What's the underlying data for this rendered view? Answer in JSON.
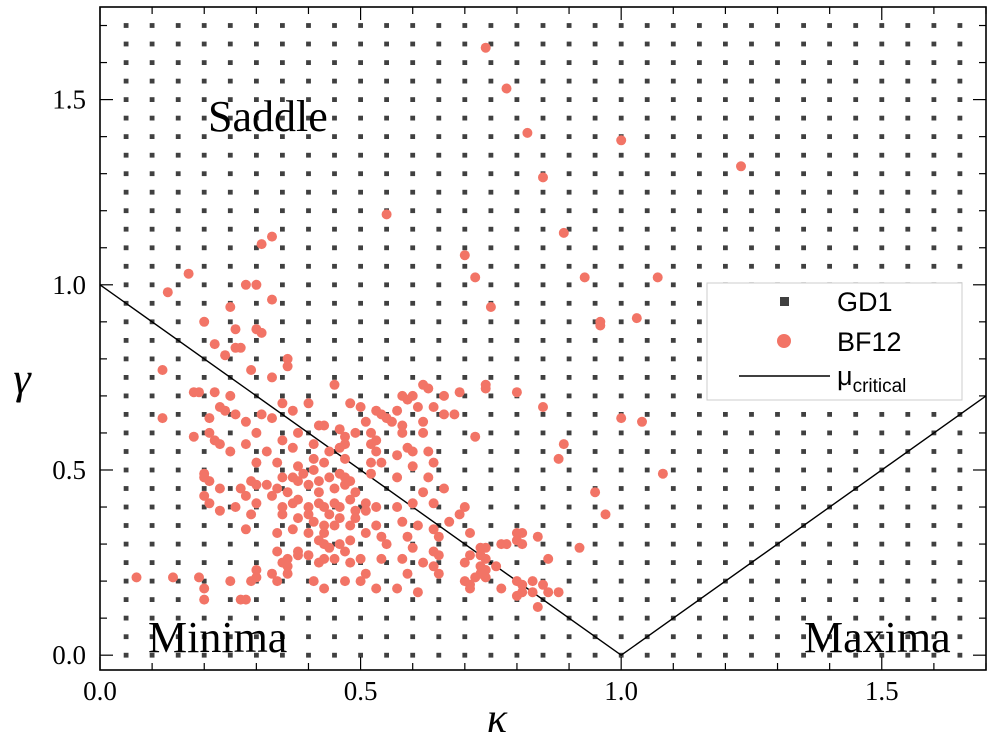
{
  "chart_data": {
    "type": "scatter",
    "xlabel": "κ",
    "ylabel": "γ",
    "xlim": [
      0.0,
      1.7
    ],
    "ylim": [
      -0.04,
      1.75
    ],
    "x_ticks": [
      "0.0",
      "0.5",
      "1.0",
      "1.5"
    ],
    "y_ticks": [
      "0.0",
      "0.5",
      "1.0",
      "1.5"
    ],
    "annotations": {
      "saddle": "Saddle",
      "minima": "Minima",
      "maxima": "Maxima"
    },
    "legend": {
      "position": "right",
      "gd1": "GD1",
      "bf12": "BF12",
      "mu_main": "μ",
      "mu_sub": "critical"
    },
    "colors": {
      "gd1": "#404040",
      "bf12": "#f27466",
      "line": "#000000",
      "axes": "#000000"
    },
    "series": [
      {
        "name": "GD1",
        "marker": "square",
        "grid": {
          "x_start": 0.05,
          "x_end": 1.65,
          "x_step": 0.05,
          "y_start": 0.0,
          "y_end": 1.7,
          "y_step": 0.05
        }
      },
      {
        "name": "BF12",
        "marker": "circle",
        "points": [
          [
            0.74,
            1.64
          ],
          [
            0.78,
            1.53
          ],
          [
            0.82,
            1.41
          ],
          [
            0.85,
            1.29
          ],
          [
            1.0,
            1.39
          ],
          [
            1.23,
            1.32
          ],
          [
            0.55,
            1.19
          ],
          [
            0.89,
            1.14
          ],
          [
            0.33,
            1.13
          ],
          [
            0.31,
            1.11
          ],
          [
            0.17,
            1.03
          ],
          [
            0.13,
            0.98
          ],
          [
            0.7,
            1.08
          ],
          [
            0.72,
            1.02
          ],
          [
            0.28,
            1.0
          ],
          [
            0.3,
            1.0
          ],
          [
            0.93,
            1.02
          ],
          [
            1.07,
            1.02
          ],
          [
            0.25,
            0.94
          ],
          [
            0.33,
            0.96
          ],
          [
            0.75,
            0.94
          ],
          [
            0.96,
            0.9
          ],
          [
            0.96,
            0.89
          ],
          [
            1.03,
            0.91
          ],
          [
            0.2,
            0.9
          ],
          [
            0.26,
            0.88
          ],
          [
            0.3,
            0.88
          ],
          [
            0.31,
            0.87
          ],
          [
            0.22,
            0.84
          ],
          [
            0.26,
            0.83
          ],
          [
            0.27,
            0.83
          ],
          [
            0.24,
            0.81
          ],
          [
            0.36,
            0.8
          ],
          [
            0.36,
            0.78
          ],
          [
            0.12,
            0.77
          ],
          [
            0.29,
            0.77
          ],
          [
            0.33,
            0.75
          ],
          [
            0.45,
            0.73
          ],
          [
            0.62,
            0.73
          ],
          [
            0.63,
            0.72
          ],
          [
            0.74,
            0.73
          ],
          [
            0.74,
            0.72
          ],
          [
            0.18,
            0.71
          ],
          [
            0.19,
            0.71
          ],
          [
            0.22,
            0.71
          ],
          [
            0.25,
            0.7
          ],
          [
            0.58,
            0.7
          ],
          [
            0.59,
            0.69
          ],
          [
            0.6,
            0.7
          ],
          [
            0.66,
            0.7
          ],
          [
            0.69,
            0.71
          ],
          [
            0.8,
            0.71
          ],
          [
            0.4,
            0.68
          ],
          [
            0.35,
            0.68
          ],
          [
            0.48,
            0.68
          ],
          [
            0.37,
            0.66
          ],
          [
            0.23,
            0.67
          ],
          [
            0.26,
            0.65
          ],
          [
            0.24,
            0.66
          ],
          [
            0.31,
            0.65
          ],
          [
            0.5,
            0.67
          ],
          [
            0.53,
            0.66
          ],
          [
            0.54,
            0.65
          ],
          [
            0.55,
            0.64
          ],
          [
            0.57,
            0.66
          ],
          [
            0.61,
            0.67
          ],
          [
            0.64,
            0.67
          ],
          [
            0.66,
            0.65
          ],
          [
            0.68,
            0.65
          ],
          [
            0.85,
            0.67
          ],
          [
            1.0,
            0.64
          ],
          [
            1.04,
            0.63
          ],
          [
            0.12,
            0.64
          ],
          [
            0.21,
            0.64
          ],
          [
            0.28,
            0.63
          ],
          [
            0.33,
            0.64
          ],
          [
            0.43,
            0.62
          ],
          [
            0.46,
            0.61
          ],
          [
            0.51,
            0.63
          ],
          [
            0.56,
            0.63
          ],
          [
            0.58,
            0.62
          ],
          [
            0.62,
            0.63
          ],
          [
            0.21,
            0.6
          ],
          [
            0.3,
            0.6
          ],
          [
            0.38,
            0.6
          ],
          [
            0.42,
            0.62
          ],
          [
            0.47,
            0.59
          ],
          [
            0.49,
            0.6
          ],
          [
            0.52,
            0.6
          ],
          [
            0.53,
            0.58
          ],
          [
            0.58,
            0.6
          ],
          [
            0.62,
            0.6
          ],
          [
            0.72,
            0.59
          ],
          [
            0.18,
            0.59
          ],
          [
            0.22,
            0.58
          ],
          [
            0.23,
            0.57
          ],
          [
            0.28,
            0.57
          ],
          [
            0.35,
            0.58
          ],
          [
            0.41,
            0.57
          ],
          [
            0.44,
            0.55
          ],
          [
            0.47,
            0.57
          ],
          [
            0.52,
            0.57
          ],
          [
            0.59,
            0.56
          ],
          [
            0.89,
            0.57
          ],
          [
            0.25,
            0.55
          ],
          [
            0.32,
            0.55
          ],
          [
            0.37,
            0.56
          ],
          [
            0.46,
            0.56
          ],
          [
            0.53,
            0.55
          ],
          [
            0.57,
            0.54
          ],
          [
            0.6,
            0.55
          ],
          [
            0.63,
            0.55
          ],
          [
            0.88,
            0.53
          ],
          [
            0.41,
            0.53
          ],
          [
            0.43,
            0.52
          ],
          [
            0.47,
            0.53
          ],
          [
            0.52,
            0.52
          ],
          [
            0.54,
            0.52
          ],
          [
            0.6,
            0.51
          ],
          [
            0.64,
            0.52
          ],
          [
            0.3,
            0.52
          ],
          [
            0.34,
            0.52
          ],
          [
            0.38,
            0.51
          ],
          [
            0.39,
            0.49
          ],
          [
            0.41,
            0.5
          ],
          [
            0.37,
            0.48
          ],
          [
            0.2,
            0.49
          ],
          [
            0.21,
            0.47
          ],
          [
            0.2,
            0.48
          ],
          [
            0.29,
            0.47
          ],
          [
            0.32,
            0.46
          ],
          [
            0.35,
            0.48
          ],
          [
            0.38,
            0.47
          ],
          [
            0.42,
            0.47
          ],
          [
            0.44,
            0.48
          ],
          [
            0.46,
            0.49
          ],
          [
            0.47,
            0.48
          ],
          [
            0.48,
            0.47
          ],
          [
            0.52,
            0.49
          ],
          [
            0.57,
            0.48
          ],
          [
            0.63,
            0.48
          ],
          [
            1.08,
            0.49
          ],
          [
            0.23,
            0.45
          ],
          [
            0.27,
            0.45
          ],
          [
            0.3,
            0.46
          ],
          [
            0.34,
            0.45
          ],
          [
            0.36,
            0.44
          ],
          [
            0.4,
            0.46
          ],
          [
            0.42,
            0.44
          ],
          [
            0.45,
            0.45
          ],
          [
            0.47,
            0.46
          ],
          [
            0.49,
            0.44
          ],
          [
            0.62,
            0.44
          ],
          [
            0.66,
            0.45
          ],
          [
            0.95,
            0.44
          ],
          [
            0.2,
            0.43
          ],
          [
            0.28,
            0.43
          ],
          [
            0.33,
            0.43
          ],
          [
            0.38,
            0.42
          ],
          [
            0.42,
            0.41
          ],
          [
            0.45,
            0.41
          ],
          [
            0.48,
            0.42
          ],
          [
            0.51,
            0.41
          ],
          [
            0.53,
            0.4
          ],
          [
            0.6,
            0.41
          ],
          [
            0.37,
            0.41
          ],
          [
            0.4,
            0.4
          ],
          [
            0.43,
            0.4
          ],
          [
            0.46,
            0.4
          ],
          [
            0.49,
            0.39
          ],
          [
            0.51,
            0.39
          ],
          [
            0.21,
            0.41
          ],
          [
            0.26,
            0.4
          ],
          [
            0.3,
            0.41
          ],
          [
            0.35,
            0.4
          ],
          [
            0.57,
            0.4
          ],
          [
            0.64,
            0.41
          ],
          [
            0.7,
            0.4
          ],
          [
            0.23,
            0.39
          ],
          [
            0.29,
            0.38
          ],
          [
            0.35,
            0.38
          ],
          [
            0.38,
            0.37
          ],
          [
            0.4,
            0.38
          ],
          [
            0.44,
            0.38
          ],
          [
            0.46,
            0.37
          ],
          [
            0.49,
            0.37
          ],
          [
            0.69,
            0.38
          ],
          [
            0.97,
            0.38
          ],
          [
            0.41,
            0.36
          ],
          [
            0.43,
            0.35
          ],
          [
            0.45,
            0.35
          ],
          [
            0.48,
            0.35
          ],
          [
            0.53,
            0.35
          ],
          [
            0.58,
            0.36
          ],
          [
            0.61,
            0.35
          ],
          [
            0.64,
            0.34
          ],
          [
            0.67,
            0.36
          ],
          [
            0.28,
            0.34
          ],
          [
            0.34,
            0.33
          ],
          [
            0.37,
            0.34
          ],
          [
            0.4,
            0.33
          ],
          [
            0.43,
            0.33
          ],
          [
            0.51,
            0.33
          ],
          [
            0.54,
            0.32
          ],
          [
            0.59,
            0.32
          ],
          [
            0.65,
            0.32
          ],
          [
            0.71,
            0.33
          ],
          [
            0.8,
            0.33
          ],
          [
            0.81,
            0.33
          ],
          [
            0.84,
            0.32
          ],
          [
            0.42,
            0.31
          ],
          [
            0.43,
            0.3
          ],
          [
            0.44,
            0.29
          ],
          [
            0.46,
            0.3
          ],
          [
            0.48,
            0.31
          ],
          [
            0.55,
            0.3
          ],
          [
            0.6,
            0.29
          ],
          [
            0.64,
            0.28
          ],
          [
            0.73,
            0.29
          ],
          [
            0.74,
            0.29
          ],
          [
            0.77,
            0.3
          ],
          [
            0.78,
            0.3
          ],
          [
            0.8,
            0.31
          ],
          [
            0.81,
            0.3
          ],
          [
            0.92,
            0.29
          ],
          [
            0.34,
            0.28
          ],
          [
            0.38,
            0.28
          ],
          [
            0.47,
            0.28
          ],
          [
            0.38,
            0.27
          ],
          [
            0.36,
            0.26
          ],
          [
            0.4,
            0.27
          ],
          [
            0.43,
            0.26
          ],
          [
            0.45,
            0.26
          ],
          [
            0.5,
            0.26
          ],
          [
            0.54,
            0.26
          ],
          [
            0.58,
            0.26
          ],
          [
            0.65,
            0.27
          ],
          [
            0.71,
            0.27
          ],
          [
            0.73,
            0.27
          ],
          [
            0.74,
            0.26
          ],
          [
            0.86,
            0.26
          ],
          [
            0.35,
            0.25
          ],
          [
            0.36,
            0.24
          ],
          [
            0.42,
            0.25
          ],
          [
            0.48,
            0.25
          ],
          [
            0.62,
            0.25
          ],
          [
            0.64,
            0.24
          ],
          [
            0.7,
            0.25
          ],
          [
            0.73,
            0.24
          ],
          [
            0.74,
            0.23
          ],
          [
            0.76,
            0.24
          ],
          [
            0.3,
            0.23
          ],
          [
            0.33,
            0.22
          ],
          [
            0.36,
            0.22
          ],
          [
            0.51,
            0.22
          ],
          [
            0.59,
            0.22
          ],
          [
            0.65,
            0.22
          ],
          [
            0.73,
            0.22
          ],
          [
            0.74,
            0.21
          ],
          [
            0.3,
            0.21
          ],
          [
            0.07,
            0.21
          ],
          [
            0.14,
            0.21
          ],
          [
            0.19,
            0.21
          ],
          [
            0.29,
            0.2
          ],
          [
            0.25,
            0.2
          ],
          [
            0.34,
            0.2
          ],
          [
            0.41,
            0.2
          ],
          [
            0.47,
            0.2
          ],
          [
            0.5,
            0.2
          ],
          [
            0.53,
            0.18
          ],
          [
            0.57,
            0.18
          ],
          [
            0.7,
            0.2
          ],
          [
            0.71,
            0.19
          ],
          [
            0.72,
            0.21
          ],
          [
            0.8,
            0.2
          ],
          [
            0.81,
            0.19
          ],
          [
            0.83,
            0.2
          ],
          [
            0.85,
            0.19
          ],
          [
            0.2,
            0.18
          ],
          [
            0.43,
            0.18
          ],
          [
            0.61,
            0.17
          ],
          [
            0.71,
            0.18
          ],
          [
            0.77,
            0.18
          ],
          [
            0.8,
            0.16
          ],
          [
            0.81,
            0.17
          ],
          [
            0.83,
            0.17
          ],
          [
            0.86,
            0.17
          ],
          [
            0.88,
            0.17
          ],
          [
            0.2,
            0.15
          ],
          [
            0.27,
            0.15
          ],
          [
            0.28,
            0.15
          ],
          [
            0.84,
            0.13
          ]
        ]
      },
      {
        "name": "μ critical",
        "marker": "line",
        "points": [
          [
            0.0,
            1.0
          ],
          [
            1.0,
            0.0
          ],
          [
            1.7,
            0.7
          ]
        ]
      }
    ]
  }
}
